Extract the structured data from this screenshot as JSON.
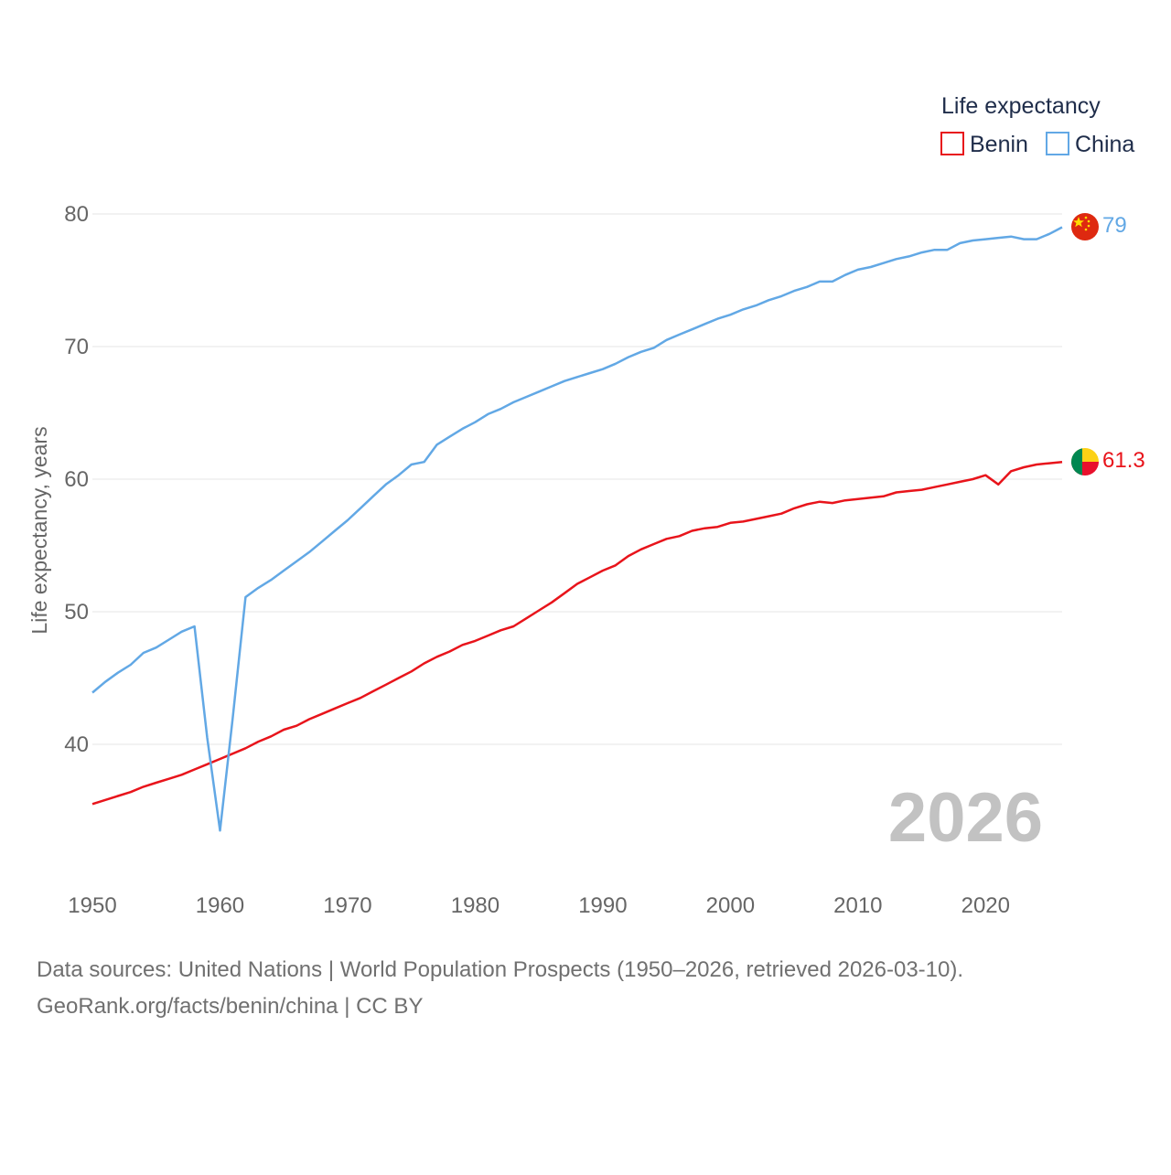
{
  "chart_data": {
    "type": "line",
    "title": "",
    "ylabel": "Life expectancy, years",
    "xlabel": "",
    "xlim": [
      1950,
      2026
    ],
    "ylim": [
      33,
      82
    ],
    "x_ticks": [
      1950,
      1960,
      1970,
      1980,
      1990,
      2000,
      2010,
      2020
    ],
    "y_ticks": [
      40,
      50,
      60,
      70,
      80
    ],
    "grid": true,
    "legend": {
      "title": "Life expectancy",
      "position": "top-right",
      "entries": [
        "Benin",
        "China"
      ]
    },
    "year_watermark": "2026",
    "x": [
      1950,
      1951,
      1952,
      1953,
      1954,
      1955,
      1956,
      1957,
      1958,
      1959,
      1960,
      1961,
      1962,
      1963,
      1964,
      1965,
      1966,
      1967,
      1968,
      1969,
      1970,
      1971,
      1972,
      1973,
      1974,
      1975,
      1976,
      1977,
      1978,
      1979,
      1980,
      1981,
      1982,
      1983,
      1984,
      1985,
      1986,
      1987,
      1988,
      1989,
      1990,
      1991,
      1992,
      1993,
      1994,
      1995,
      1996,
      1997,
      1998,
      1999,
      2000,
      2001,
      2002,
      2003,
      2004,
      2005,
      2006,
      2007,
      2008,
      2009,
      2010,
      2011,
      2012,
      2013,
      2014,
      2015,
      2016,
      2017,
      2018,
      2019,
      2020,
      2021,
      2022,
      2023,
      2024,
      2025,
      2026
    ],
    "series": [
      {
        "name": "Benin",
        "color": "#e8141b",
        "end_label": "61.3",
        "flag": "benin-flag",
        "values": [
          35.5,
          35.8,
          36.1,
          36.4,
          36.8,
          37.1,
          37.4,
          37.7,
          38.1,
          38.5,
          38.9,
          39.3,
          39.7,
          40.2,
          40.6,
          41.1,
          41.4,
          41.9,
          42.3,
          42.7,
          43.1,
          43.5,
          44.0,
          44.5,
          45.0,
          45.5,
          46.1,
          46.6,
          47.0,
          47.5,
          47.8,
          48.2,
          48.6,
          48.9,
          49.5,
          50.1,
          50.7,
          51.4,
          52.1,
          52.6,
          53.1,
          53.5,
          54.2,
          54.7,
          55.1,
          55.5,
          55.7,
          56.1,
          56.3,
          56.4,
          56.7,
          56.8,
          57.0,
          57.2,
          57.4,
          57.8,
          58.1,
          58.3,
          58.2,
          58.4,
          58.5,
          58.6,
          58.7,
          59.0,
          59.1,
          59.2,
          59.4,
          59.6,
          59.8,
          60.0,
          60.3,
          59.6,
          60.6,
          60.9,
          61.1,
          61.2,
          61.3
        ]
      },
      {
        "name": "China",
        "color": "#62a8e5",
        "end_label": "79",
        "flag": "china-flag",
        "values": [
          43.9,
          44.7,
          45.4,
          46.0,
          46.9,
          47.3,
          47.9,
          48.5,
          48.9,
          40.5,
          33.5,
          42.0,
          51.1,
          51.8,
          52.4,
          53.1,
          53.8,
          54.5,
          55.3,
          56.1,
          56.9,
          57.8,
          58.7,
          59.6,
          60.3,
          61.1,
          61.3,
          62.6,
          63.2,
          63.8,
          64.3,
          64.9,
          65.3,
          65.8,
          66.2,
          66.6,
          67.0,
          67.4,
          67.7,
          68.0,
          68.3,
          68.7,
          69.2,
          69.6,
          69.9,
          70.5,
          70.9,
          71.3,
          71.7,
          72.1,
          72.4,
          72.8,
          73.1,
          73.5,
          73.8,
          74.2,
          74.5,
          74.9,
          74.9,
          75.4,
          75.8,
          76.0,
          76.3,
          76.6,
          76.8,
          77.1,
          77.3,
          77.3,
          77.8,
          78.0,
          78.1,
          78.2,
          78.3,
          78.1,
          78.1,
          78.5,
          79.0
        ]
      }
    ]
  },
  "source": {
    "line1": "Data sources: United Nations | World Population Prospects (1950–2026, retrieved 2026-03-10).",
    "line2": "GeoRank.org/facts/benin/china | CC BY"
  }
}
